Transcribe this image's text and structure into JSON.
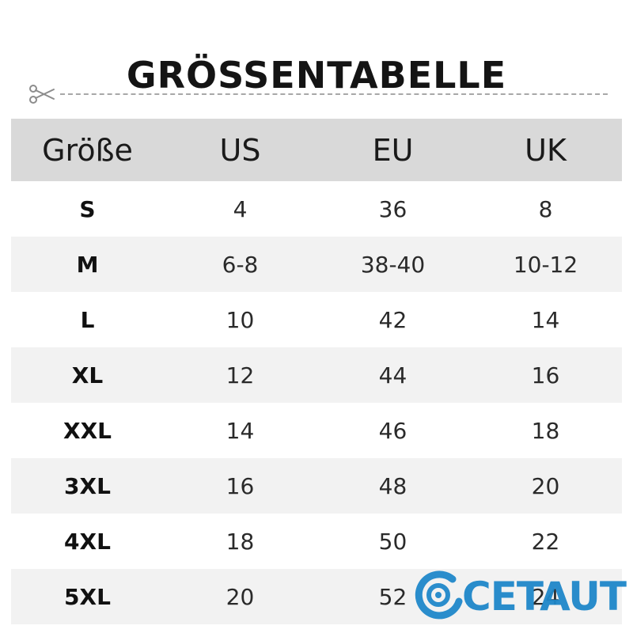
{
  "title": "GRÖSSENTABELLE",
  "icons": {
    "cut_marker": "scissors-icon"
  },
  "table": {
    "headers": [
      "Größe",
      "US",
      "EU",
      "UK"
    ],
    "rows": [
      [
        "S",
        "4",
        "36",
        "8"
      ],
      [
        "M",
        "6-8",
        "38-40",
        "10-12"
      ],
      [
        "L",
        "10",
        "42",
        "14"
      ],
      [
        "XL",
        "12",
        "44",
        "16"
      ],
      [
        "XXL",
        "14",
        "46",
        "18"
      ],
      [
        "3XL",
        "16",
        "48",
        "20"
      ],
      [
        "4XL",
        "18",
        "50",
        "22"
      ],
      [
        "5XL",
        "20",
        "52",
        "24"
      ]
    ]
  },
  "watermark": {
    "text": "CETAUT",
    "color": "#1f87c9"
  },
  "colors": {
    "header_bg": "#d9d9d9",
    "alt_row_bg": "#f2f2f2",
    "dash_line": "#a8a8a8"
  }
}
